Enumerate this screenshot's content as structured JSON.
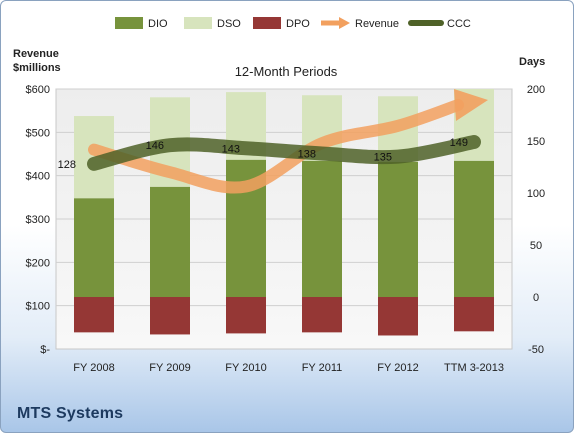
{
  "company": "MTS Systems",
  "chart_data": {
    "type": "bar",
    "subtitle": "12-Month Periods",
    "categories": [
      "FY 2008",
      "FY 2009",
      "FY 2010",
      "FY 2011",
      "FY 2012",
      "TTM 3-2013"
    ],
    "left_axis": {
      "label_line1": "Revenue",
      "label_line2": "$millions",
      "range": [
        0,
        600
      ],
      "ticks": [
        0,
        100,
        200,
        300,
        400,
        500,
        600
      ],
      "tick_labels": [
        "$-",
        "$100",
        "$200",
        "$300",
        "$400",
        "$500",
        "$600"
      ]
    },
    "right_axis": {
      "label": "Days",
      "range": [
        -50,
        200
      ],
      "ticks": [
        -50,
        0,
        50,
        100,
        150,
        200
      ],
      "tick_labels": [
        "-50",
        "0",
        "50",
        "100",
        "150",
        "200"
      ]
    },
    "grid": true,
    "legend_position": "top",
    "legend": [
      "DIO",
      "DSO",
      "DPO",
      "Revenue",
      "CCC"
    ],
    "series": [
      {
        "name": "DIO",
        "axis": "right",
        "values": [
          95,
          106,
          132,
          131,
          130,
          131
        ],
        "color": "#77933c"
      },
      {
        "name": "DSO",
        "axis": "right",
        "values": [
          79,
          86,
          65,
          63,
          63,
          69
        ],
        "color": "#d7e4bd"
      },
      {
        "name": "DPO",
        "axis": "right",
        "values": [
          -34,
          -36,
          -35,
          -34,
          -37,
          -33
        ],
        "color": "#953735"
      },
      {
        "name": "Revenue",
        "axis": "left",
        "values": [
          460,
          408,
          375,
          475,
          515,
          570
        ],
        "color": "#f2a05f"
      },
      {
        "name": "CCC",
        "axis": "right",
        "values": [
          128,
          146,
          143,
          138,
          135,
          149
        ],
        "color": "#4f6228"
      }
    ],
    "ccc_labels": [
      "128",
      "146",
      "143",
      "138",
      "135",
      "149"
    ]
  }
}
